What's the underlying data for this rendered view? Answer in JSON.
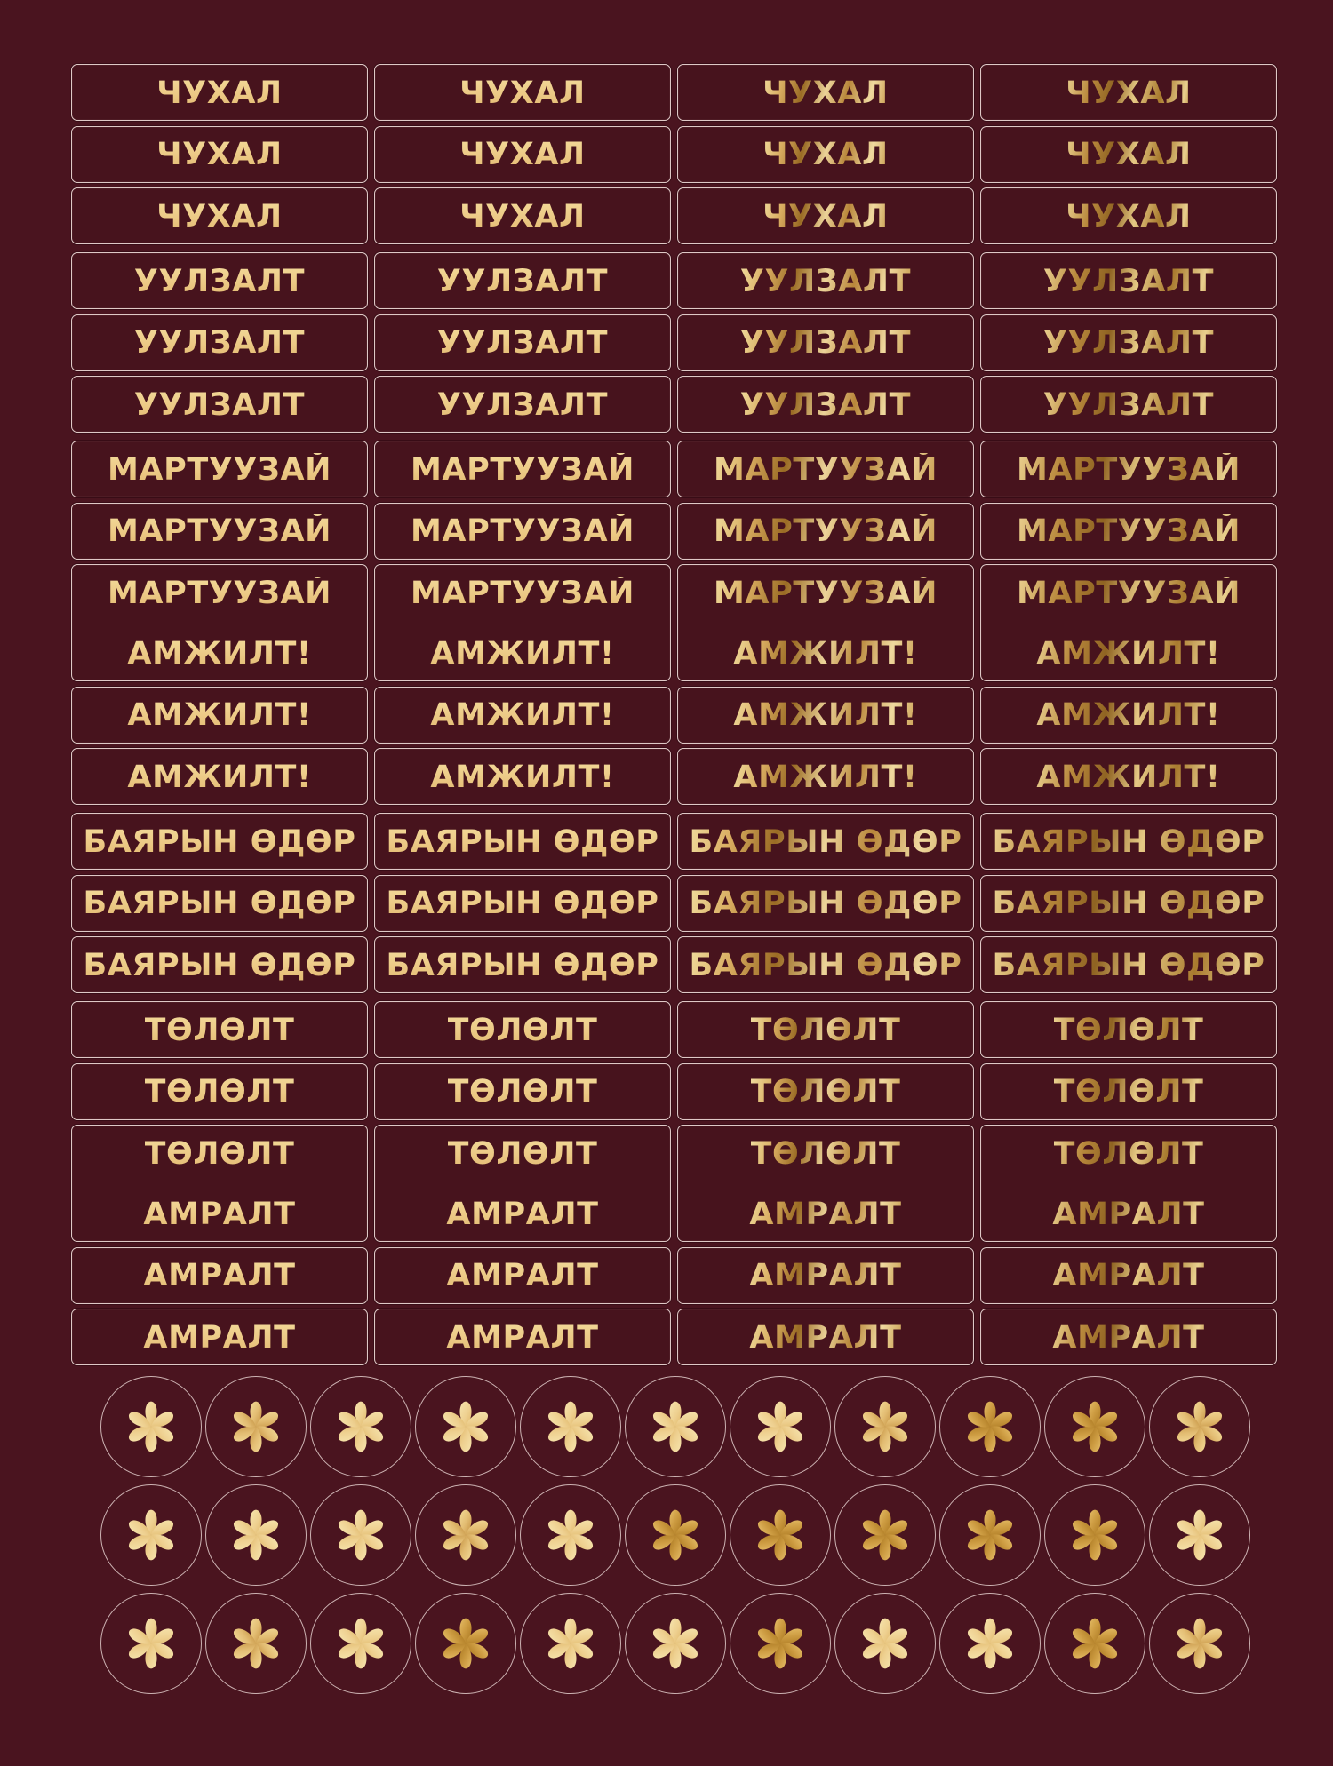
{
  "canvas": {
    "background": "#4a141f"
  },
  "colors": {
    "box_border": "#ebd8d5",
    "circle_border": "#e9d5d3",
    "gold_flat": "#ecc985",
    "gold_light": "#f3da9a",
    "gold_amber": "#b8863a",
    "gold_deep": "#8f6322"
  },
  "labels_sheet": {
    "columns": 4,
    "column_styles": [
      "gold-flat",
      "gold-flat",
      "gold-grad-a",
      "gold-grad-b"
    ],
    "rows": [
      {
        "type": "single",
        "text": "ЧУХАЛ"
      },
      {
        "type": "single",
        "text": "ЧУХАЛ"
      },
      {
        "type": "single",
        "text": "ЧУХАЛ"
      },
      {
        "type": "single",
        "text": "УУЛЗАЛТ",
        "group_start": true
      },
      {
        "type": "single",
        "text": "УУЛЗАЛТ"
      },
      {
        "type": "single",
        "text": "УУЛЗАЛТ"
      },
      {
        "type": "single",
        "text": "МАРТУУЗАЙ",
        "group_start": true
      },
      {
        "type": "single",
        "text": "МАРТУУЗАЙ"
      },
      {
        "type": "double",
        "lines": [
          "МАРТУУЗАЙ",
          "АМЖИЛТ!"
        ]
      },
      {
        "type": "single",
        "text": "АМЖИЛТ!"
      },
      {
        "type": "single",
        "text": "АМЖИЛТ!"
      },
      {
        "type": "single",
        "text": "БАЯРЫН ӨДӨР",
        "group_start": true
      },
      {
        "type": "single",
        "text": "БАЯРЫН ӨДӨР"
      },
      {
        "type": "single",
        "text": "БАЯРЫН ӨДӨР"
      },
      {
        "type": "single",
        "text": "ТӨЛӨЛТ",
        "group_start": true
      },
      {
        "type": "single",
        "text": "ТӨЛӨЛТ"
      },
      {
        "type": "double",
        "lines": [
          "ТӨЛӨЛТ",
          "АМРАЛТ"
        ]
      },
      {
        "type": "single",
        "text": "АМРАЛТ"
      },
      {
        "type": "single",
        "text": "АМРАЛТ"
      }
    ]
  },
  "sticker_dots": {
    "icon": "six-petal-flower-icon",
    "columns": 11,
    "rows": 3,
    "variant_matrix": [
      [
        0,
        1,
        0,
        0,
        0,
        0,
        0,
        1,
        2,
        2,
        1
      ],
      [
        0,
        0,
        0,
        1,
        0,
        2,
        2,
        2,
        2,
        2,
        0
      ],
      [
        0,
        1,
        0,
        2,
        0,
        0,
        2,
        0,
        0,
        2,
        1
      ]
    ]
  }
}
